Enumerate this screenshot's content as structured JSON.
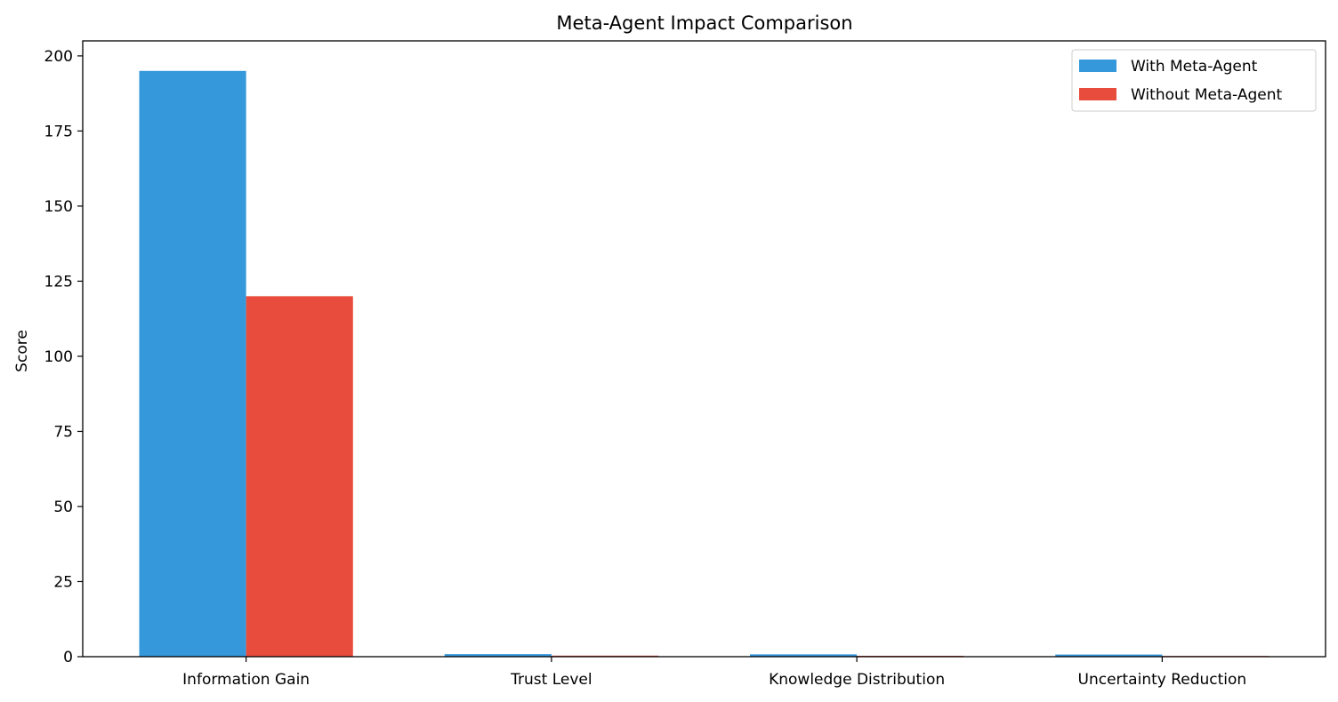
{
  "chart_data": {
    "type": "bar",
    "title": "Meta-Agent Impact Comparison",
    "xlabel": "",
    "ylabel": "Score",
    "categories": [
      "Information Gain",
      "Trust Level",
      "Knowledge Distribution",
      "Uncertainty Reduction"
    ],
    "series": [
      {
        "name": "With Meta-Agent",
        "color": "#3498db",
        "values": [
          195,
          0.85,
          0.78,
          0.72
        ]
      },
      {
        "name": "Without Meta-Agent",
        "color": "#e74c3c",
        "values": [
          120,
          0.35,
          0.3,
          0.25
        ]
      }
    ],
    "ylim": [
      0,
      205
    ],
    "yticks": [
      0,
      25,
      50,
      75,
      100,
      125,
      150,
      175,
      200
    ],
    "grid": false,
    "legend": "top-right"
  }
}
